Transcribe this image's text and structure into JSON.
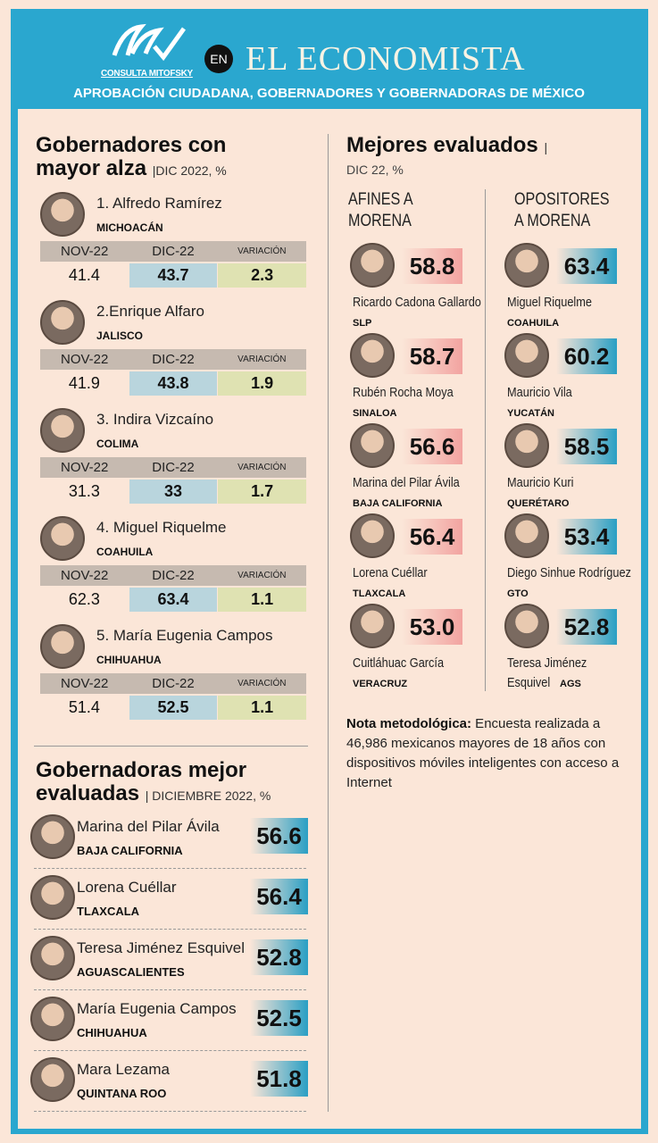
{
  "header": {
    "logo_text": "CONSULTA MITOFSKY",
    "en": "EN",
    "brand": "EL ECONOMISTA",
    "subtitle": "APROBACIÓN CIUDADANA, GOBERNADORES Y GOBERNADORAS DE MÉXICO"
  },
  "colors": {
    "frame": "#2aa7cf",
    "background": "#fbe6d8",
    "afines_box": "#f2a3a0",
    "opositores_box": "#2a9fc4"
  },
  "alza": {
    "title1": "Gobernadores con",
    "title2": "mayor alza",
    "period": "|DIC 2022, %",
    "col_nov": "NOV-22",
    "col_dic": "DIC-22",
    "col_var": "VARIACIÓN",
    "items": [
      {
        "name": "1. Alfredo Ramírez",
        "state": "MICHOACÁN",
        "nov": "41.4",
        "dic": "43.7",
        "var": "2.3"
      },
      {
        "name": "2.Enrique Alfaro",
        "state": "JALISCO",
        "nov": "41.9",
        "dic": "43.8",
        "var": "1.9"
      },
      {
        "name": "3. Indira Vizcaíno",
        "state": "COLIMA",
        "nov": "31.3",
        "dic": "33",
        "var": "1.7"
      },
      {
        "name": "4. Miguel Riquelme",
        "state": "COAHUILA",
        "nov": "62.3",
        "dic": "63.4",
        "var": "1.1"
      },
      {
        "name": "5. María Eugenia Campos",
        "state": "CHIHUAHUA",
        "nov": "51.4",
        "dic": "52.5",
        "var": "1.1"
      }
    ]
  },
  "gobernadoras": {
    "title1": "Gobernadoras mejor",
    "title2": "evaluadas",
    "period": "| DICIEMBRE 2022, %",
    "items": [
      {
        "name": "Marina del Pilar Ávila",
        "state": "BAJA CALIFORNIA",
        "score": "56.6"
      },
      {
        "name": "Lorena Cuéllar",
        "state": "TLAXCALA",
        "score": "56.4"
      },
      {
        "name": "Teresa Jiménez Esquivel",
        "state": "AGUASCALIENTES",
        "score": "52.8"
      },
      {
        "name": "María Eugenia Campos",
        "state": "CHIHUAHUA",
        "score": "52.5"
      },
      {
        "name": "Mara Lezama",
        "state": "QUINTANA ROO",
        "score": "51.8"
      }
    ]
  },
  "mejores": {
    "title": "Mejores evaluados",
    "bar": "|",
    "period": "DIC 22, %",
    "afines": {
      "heading1": "AFINES A",
      "heading2": "MORENA",
      "items": [
        {
          "name": "Ricardo Cadona Gallardo",
          "state": "SLP",
          "score": "58.8"
        },
        {
          "name": "Rubén Rocha Moya",
          "state": "SINALOA",
          "score": "58.7"
        },
        {
          "name": "Marina del Pilar Ávila",
          "state": "BAJA CALIFORNIA",
          "score": "56.6"
        },
        {
          "name": "Lorena Cuéllar",
          "state": "TLAXCALA",
          "score": "56.4"
        },
        {
          "name": "Cuitláhuac García",
          "state": "VERACRUZ",
          "score": "53.0"
        }
      ]
    },
    "opositores": {
      "heading1": "OPOSITORES",
      "heading2": "A MORENA",
      "items": [
        {
          "name": "Miguel Riquelme",
          "state": "COAHUILA",
          "score": "63.4"
        },
        {
          "name": "Mauricio Vila",
          "state": "YUCATÁN",
          "score": "60.2"
        },
        {
          "name": "Mauricio Kuri",
          "state": "QUERÉTARO",
          "score": "58.5"
        },
        {
          "name": "Diego Sinhue Rodríguez",
          "state": "GTO",
          "score": "53.4"
        },
        {
          "name": "Teresa Jiménez",
          "name2": "Esquivel",
          "state": "AGS",
          "score": "52.8"
        }
      ]
    }
  },
  "note": {
    "label": "Nota metodológica:",
    "text": " Encuesta realizada a 46,986  mexicanos mayores de 18 años con dispositivos móviles inteligentes con acceso a Internet"
  }
}
